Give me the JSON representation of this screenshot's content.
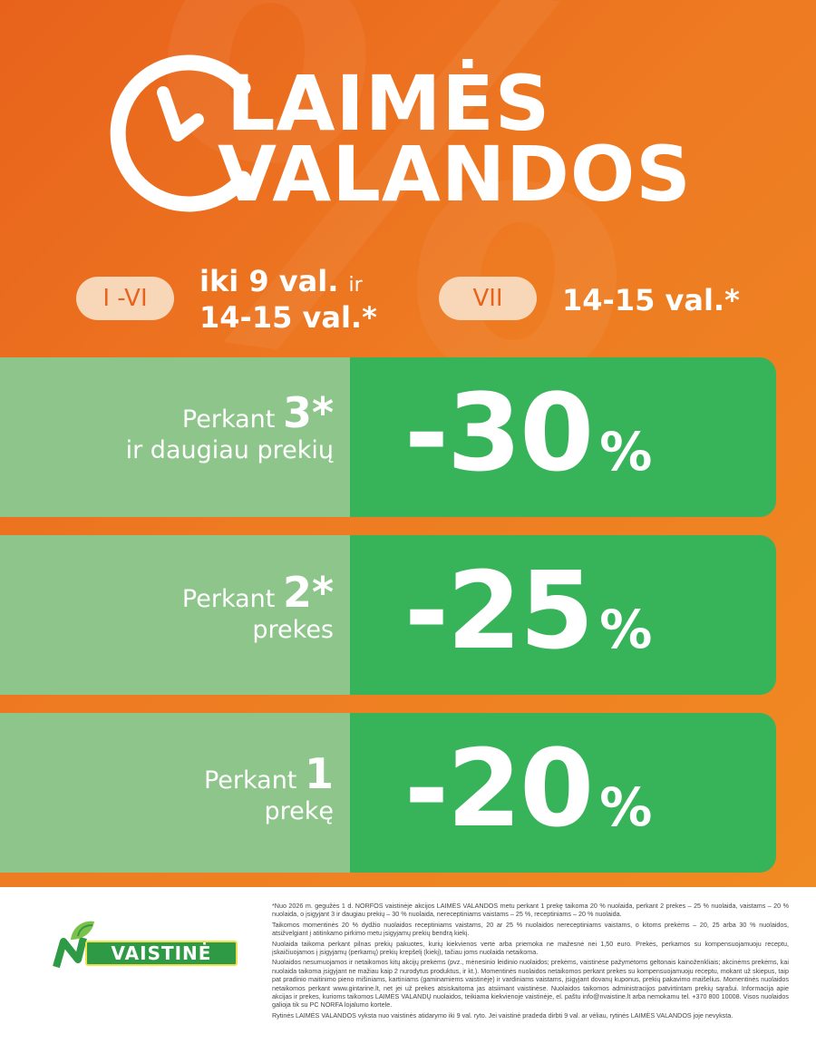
{
  "title": {
    "line1": "LAIMĖS",
    "line2": "VALANDOS"
  },
  "icons": {
    "clock": "clock-icon",
    "leaf": "leaf-icon"
  },
  "schedule": {
    "weekdays_badge": "I -VI",
    "weekdays_time_line1": "iki 9 val.",
    "weekdays_connector": "ir",
    "weekdays_time_line2": "14-15 val.*",
    "sunday_badge": "VII",
    "sunday_time": "14-15 val.*"
  },
  "offers": [
    {
      "prefix": "Perkant",
      "qty": "3*",
      "suffix": "ir daugiau prekių",
      "discount": "-30",
      "percent": "%"
    },
    {
      "prefix": "Perkant",
      "qty": "2*",
      "suffix": "prekes",
      "discount": "-25",
      "percent": "%"
    },
    {
      "prefix": "Perkant",
      "qty": "1",
      "suffix": "prekę",
      "discount": "-20",
      "percent": "%"
    }
  ],
  "brand": {
    "name": "VAISTINĖ"
  },
  "footnotes": [
    "*Nuo 2026 m. gegužės 1 d. NORFOS vaistinėje akcijos LAIMĖS VALANDOS metu perkant 1 prekę taikoma 20 % nuolaida, perkant 2 prekes – 25 % nuolaida, vaistams – 20 % nuolaida, o įsigyjant 3 ir daugiau prekių – 30 % nuolaida, nereceptiniams vaistams – 25 %, receptiniams – 20 % nuolaida.",
    "Taikomos momentinės 20 % dydžio nuolaidos receptiniams vaistams, 20 ar 25 % nuolaidos nereceptiniams vaistams, o kitoms prekėms – 20, 25 arba 30 % nuolaidos, atsižvelgiant į atitinkamo pirkimo metu įsigyjamų prekių bendrą kiekį.",
    "Nuolaida taikoma perkant pilnas prekių pakuotes, kurių kiekvienos vertė arba priemoka ne mažesnė nei 1,50 euro. Prekės, perkamos su kompensuojamuoju receptu, įskaičiuojamos į įsigyjamų (perkamų) prekių krepšelį (kiekį), tačiau joms nuolaida netaikoma.",
    "Nuolaidos nesumuojamos ir netaikomos kitų akcijų prekėms (pvz., mėnesinio leidinio nuolaidos; prekėms, vaistinėse pažymėtoms geltonais kainoženkliais; akcinėms prekėms, kai nuolaida taikoma įsigyjant ne mažiau kaip 2 nurodytus produktus, ir kt.). Momentinės nuolaidos netaikomos perkant prekes su kompensuojamuoju receptu, mokant už skiepus, taip pat pradinio maitinimo pieno mišiniams, kartiniams (gaminamiems vaistinėje) ir vardiniams vaistams, įsigyjant dovanų kuponus, prekių pakavimo maišelius. Momentinės nuolaidos netaikomos perkant www.gintarine.lt, net jei už prekes atsiskaitoma jas atsiimant vaistinėse. Nuolaidos taikomos administracijos patvirtintam prekių sąrašui. Informacija apie akcijas ir prekes, kurioms taikomos LAIMĖS VALANDŲ nuolaidos, teikiama kiekvienoje vaistinėje, el. paštu info@nvaistine.lt arba nemokamu tel. +370 800 10008. Visos nuolaidos galioja tik su PC NORFA lojalumo kortele.",
    "Rytinės LAIMĖS VALANDOS vyksta nuo vaistinės atidarymo iki 9 val. ryto. Jei vaistinė pradeda dirbti 9 val. ar vėliau, rytinės LAIMĖS VALANDOS joje nevyksta."
  ]
}
